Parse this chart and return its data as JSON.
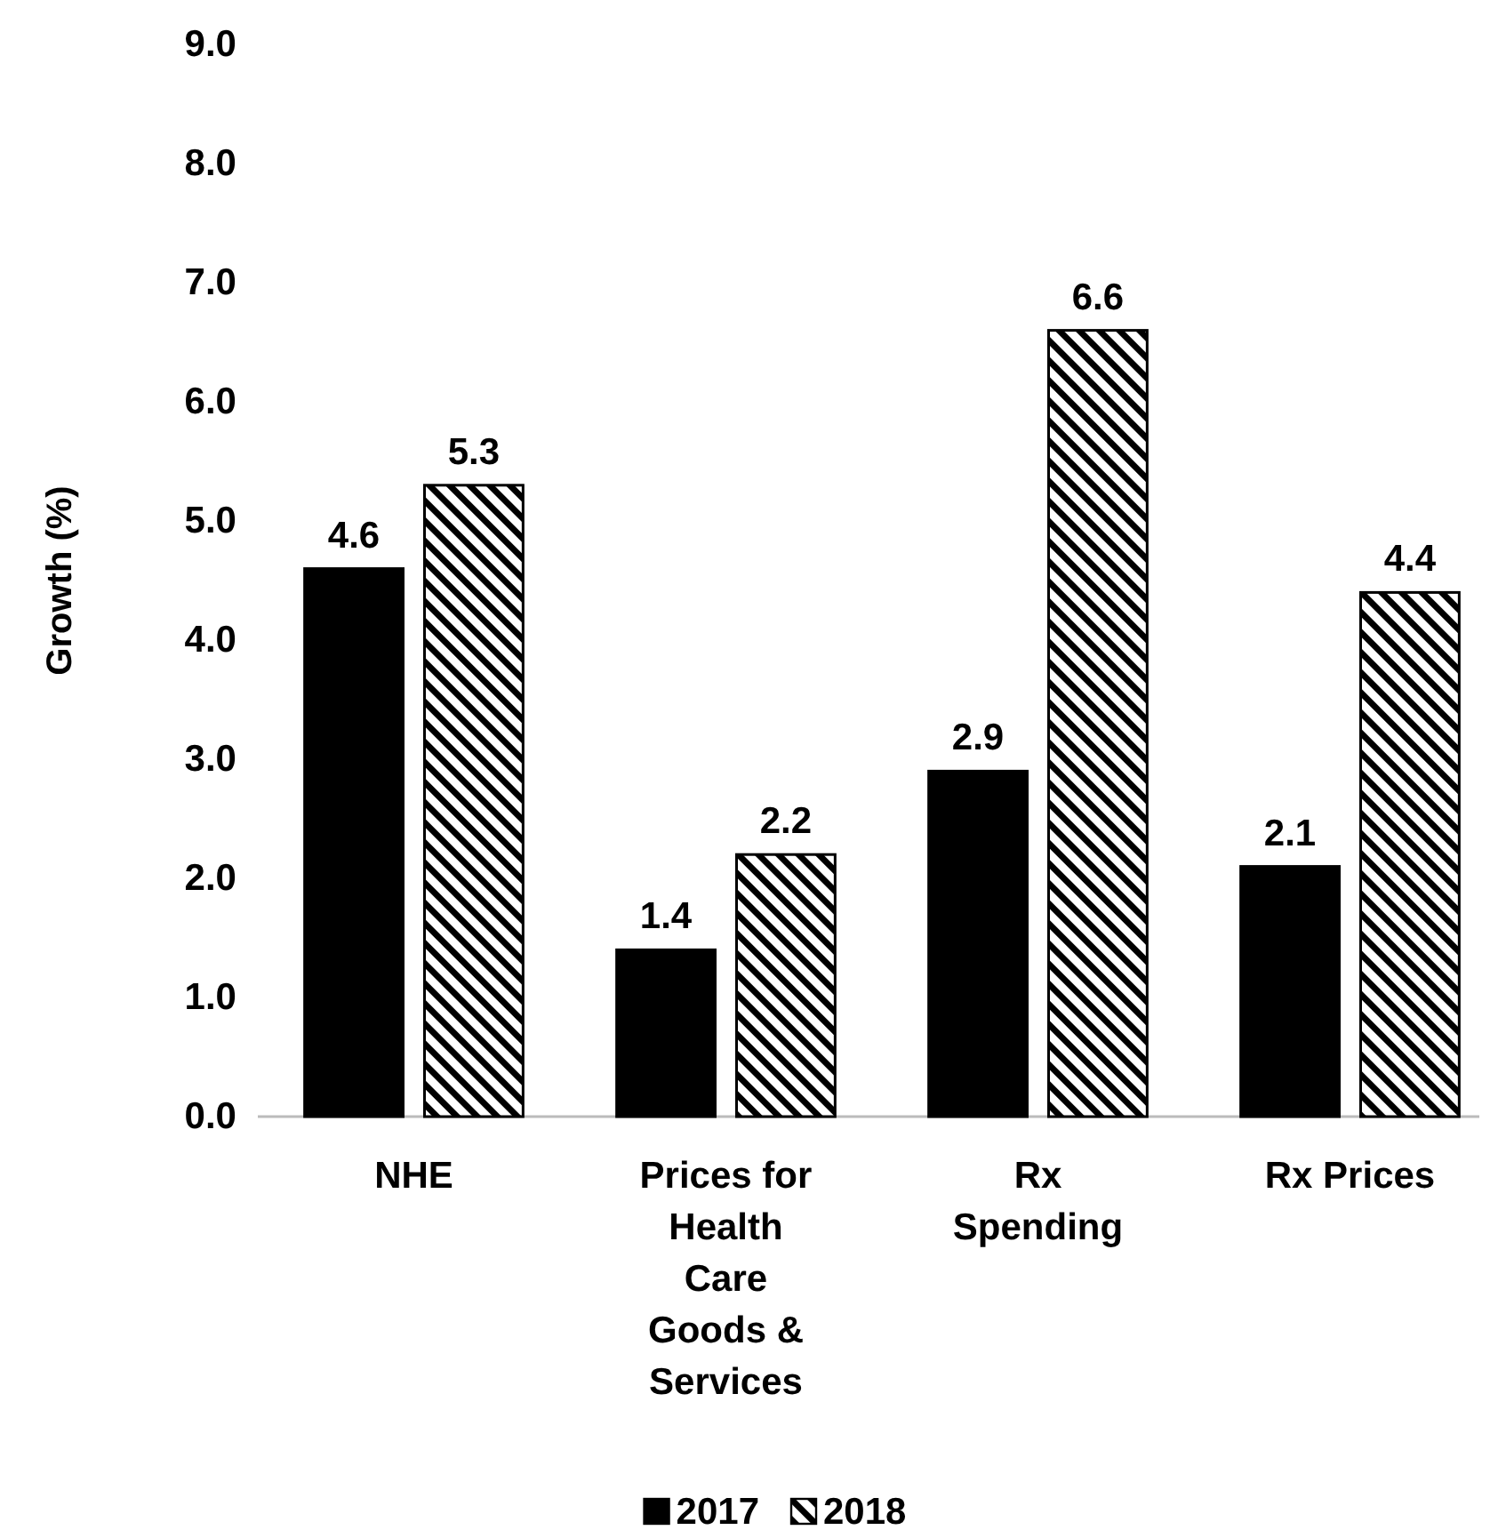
{
  "chart_data": {
    "type": "bar",
    "ylabel": "Growth (%)",
    "categories": [
      "NHE",
      "Prices for Health Care Goods & Services",
      "Rx Spending",
      "Rx Prices"
    ],
    "series": [
      {
        "name": "2017",
        "color": "#000000",
        "values": [
          4.6,
          1.4,
          2.9,
          2.1
        ]
      },
      {
        "name": "2018",
        "color": "#000000",
        "values": [
          5.3,
          2.2,
          6.6,
          4.4
        ]
      }
    ],
    "ylim": [
      0,
      9
    ],
    "yticks": [
      {
        "value": 0,
        "label": "0.0"
      },
      {
        "value": 1,
        "label": "1.0"
      },
      {
        "value": 2,
        "label": "2.0"
      },
      {
        "value": 3,
        "label": "3.0"
      },
      {
        "value": 4,
        "label": "4.0"
      },
      {
        "value": 5,
        "label": "5.0"
      },
      {
        "value": 6,
        "label": "6.0"
      },
      {
        "value": 7,
        "label": "7.0"
      },
      {
        "value": 8,
        "label": "8.0"
      },
      {
        "value": 9,
        "label": "9.0"
      }
    ],
    "data_labels": true,
    "grid": false,
    "legend": "bottom"
  }
}
